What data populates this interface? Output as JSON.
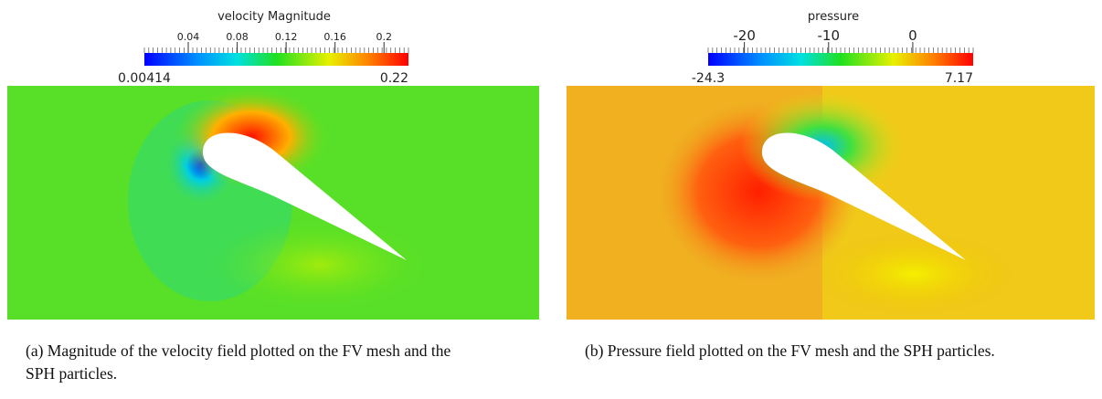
{
  "panels": [
    {
      "colorbar": {
        "title": "velocity Magnitude",
        "min": 0.00414,
        "max": 0.22,
        "ticks": [
          0.04,
          0.08,
          0.12,
          0.16,
          0.2
        ]
      },
      "caption": "(a) Magnitude of the velocity field plotted on the FV mesh and the SPH particles."
    },
    {
      "colorbar": {
        "title": "pressure",
        "min": -24.3,
        "max": 7.17,
        "ticks": [
          -20,
          -10,
          0
        ]
      },
      "caption": "(b) Pressure field plotted on the FV mesh and the SPH particles."
    }
  ]
}
